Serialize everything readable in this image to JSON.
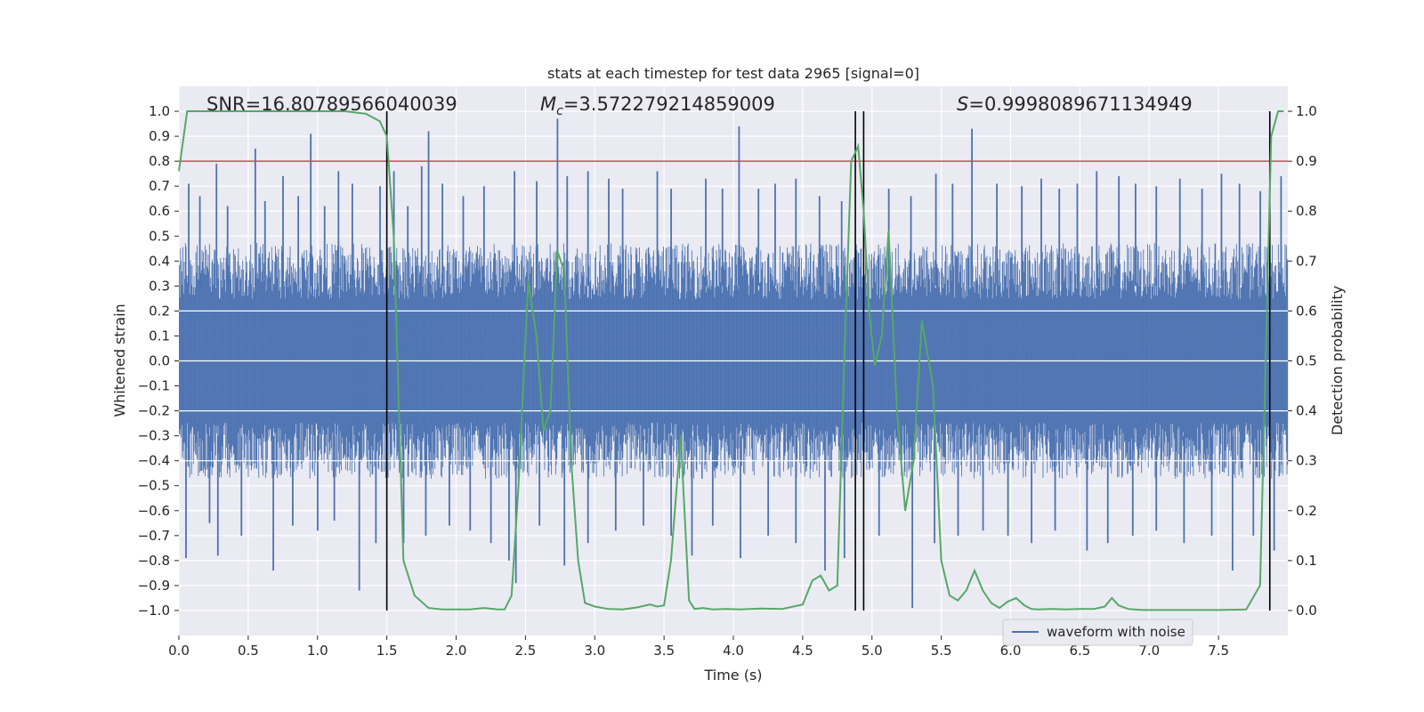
{
  "chart_data": {
    "type": "line",
    "title": "stats at each timestep for test data 2965 [signal=0]",
    "xlabel": "Time (s)",
    "ylabel_left": "Whitened strain",
    "ylabel_right": "Detection probability",
    "xlim": [
      0.0,
      8.0
    ],
    "ylim_left": [
      -1.1,
      1.1
    ],
    "ylim_right": [
      -0.05,
      1.05
    ],
    "x_ticks": [
      0.0,
      0.5,
      1.0,
      1.5,
      2.0,
      2.5,
      3.0,
      3.5,
      4.0,
      4.5,
      5.0,
      5.5,
      6.0,
      6.5,
      7.0,
      7.5
    ],
    "x_tick_labels": [
      "0.0",
      "0.5",
      "1.0",
      "1.5",
      "2.0",
      "2.5",
      "3.0",
      "3.5",
      "4.0",
      "4.5",
      "5.0",
      "5.5",
      "6.0",
      "6.5",
      "7.0",
      "7.5"
    ],
    "y_ticks_left": [
      1.0,
      0.9,
      0.8,
      0.7,
      0.6,
      0.5,
      0.4,
      0.3,
      0.2,
      0.1,
      0.0,
      -0.1,
      -0.2,
      -0.3,
      -0.4,
      -0.5,
      -0.6,
      -0.7,
      -0.8,
      -0.9,
      -1.0
    ],
    "y_tick_labels_left": [
      "1.0",
      "0.9",
      "0.8",
      "0.7",
      "0.6",
      "0.5",
      "0.4",
      "0.3",
      "0.2",
      "0.1",
      "0.0",
      "−0.1",
      "−0.2",
      "−0.3",
      "−0.4",
      "−0.5",
      "−0.6",
      "−0.7",
      "−0.8",
      "−0.9",
      "−1.0"
    ],
    "y_ticks_right": [
      1.0,
      0.9,
      0.8,
      0.7,
      0.6,
      0.5,
      0.4,
      0.3,
      0.2,
      0.1,
      0.0
    ],
    "y_tick_labels_right": [
      "1.0",
      "0.9",
      "0.8",
      "0.7",
      "0.6",
      "0.5",
      "0.4",
      "0.3",
      "0.2",
      "0.1",
      "0.0"
    ],
    "grid": true,
    "annotations": {
      "snr": "SNR=16.80789566040039",
      "mc_symbol": "M",
      "mc_sub": "c",
      "mc_value": "=3.572279214859009",
      "s_symbol": "S",
      "s_value": "=0.9998089671134949"
    },
    "threshold": {
      "value": 0.9,
      "axis": "right",
      "color": "#c44e52"
    },
    "vertical_markers_x": [
      1.5,
      4.88,
      4.94,
      7.87
    ],
    "waveform": {
      "name": "waveform with noise",
      "color": "#4c72b0",
      "duration_s": 8.0,
      "typical_upper": 0.45,
      "typical_lower": -0.45,
      "spikes_up": [
        [
          0.07,
          0.71
        ],
        [
          0.15,
          0.66
        ],
        [
          0.27,
          0.79
        ],
        [
          0.35,
          0.62
        ],
        [
          0.55,
          0.85
        ],
        [
          0.62,
          0.64
        ],
        [
          0.75,
          0.74
        ],
        [
          0.86,
          0.66
        ],
        [
          0.95,
          0.91
        ],
        [
          1.05,
          0.62
        ],
        [
          1.15,
          0.76
        ],
        [
          1.25,
          0.71
        ],
        [
          1.45,
          0.7
        ],
        [
          1.55,
          0.76
        ],
        [
          1.65,
          0.62
        ],
        [
          1.75,
          0.78
        ],
        [
          1.8,
          0.92
        ],
        [
          1.9,
          0.71
        ],
        [
          2.05,
          0.66
        ],
        [
          2.2,
          0.7
        ],
        [
          2.42,
          0.76
        ],
        [
          2.58,
          0.72
        ],
        [
          2.73,
          0.97
        ],
        [
          2.8,
          0.74
        ],
        [
          2.95,
          0.76
        ],
        [
          3.1,
          0.73
        ],
        [
          3.2,
          0.69
        ],
        [
          3.45,
          0.76
        ],
        [
          3.55,
          0.69
        ],
        [
          3.8,
          0.73
        ],
        [
          3.92,
          0.69
        ],
        [
          4.04,
          0.94
        ],
        [
          4.18,
          0.69
        ],
        [
          4.3,
          0.71
        ],
        [
          4.45,
          0.73
        ],
        [
          4.62,
          0.66
        ],
        [
          4.78,
          0.64
        ],
        [
          5.12,
          0.69
        ],
        [
          5.28,
          0.66
        ],
        [
          5.46,
          0.75
        ],
        [
          5.58,
          0.71
        ],
        [
          5.72,
          0.93
        ],
        [
          5.9,
          0.71
        ],
        [
          6.08,
          0.7
        ],
        [
          6.22,
          0.73
        ],
        [
          6.35,
          0.69
        ],
        [
          6.48,
          0.71
        ],
        [
          6.62,
          0.76
        ],
        [
          6.78,
          0.74
        ],
        [
          6.9,
          0.71
        ],
        [
          7.05,
          0.7
        ],
        [
          7.22,
          0.73
        ],
        [
          7.38,
          0.69
        ],
        [
          7.52,
          0.75
        ],
        [
          7.65,
          0.71
        ],
        [
          7.8,
          0.68
        ],
        [
          7.95,
          0.74
        ]
      ],
      "spikes_down": [
        [
          0.05,
          -0.79
        ],
        [
          0.22,
          -0.65
        ],
        [
          0.28,
          -0.78
        ],
        [
          0.45,
          -0.7
        ],
        [
          0.68,
          -0.84
        ],
        [
          0.82,
          -0.66
        ],
        [
          1.0,
          -0.68
        ],
        [
          1.12,
          -0.64
        ],
        [
          1.3,
          -0.92
        ],
        [
          1.42,
          -0.73
        ],
        [
          1.62,
          -0.73
        ],
        [
          1.78,
          -0.7
        ],
        [
          1.95,
          -0.66
        ],
        [
          2.1,
          -0.68
        ],
        [
          2.25,
          -0.73
        ],
        [
          2.38,
          -0.8
        ],
        [
          2.43,
          -0.89
        ],
        [
          2.6,
          -0.66
        ],
        [
          2.78,
          -0.82
        ],
        [
          2.95,
          -0.73
        ],
        [
          3.15,
          -0.68
        ],
        [
          3.35,
          -0.66
        ],
        [
          3.55,
          -0.7
        ],
        [
          3.7,
          -0.78
        ],
        [
          3.85,
          -0.66
        ],
        [
          4.05,
          -0.79
        ],
        [
          4.25,
          -0.7
        ],
        [
          4.45,
          -0.73
        ],
        [
          4.66,
          -0.84
        ],
        [
          4.8,
          -0.79
        ],
        [
          5.05,
          -0.7
        ],
        [
          5.29,
          -0.99
        ],
        [
          5.45,
          -0.73
        ],
        [
          5.62,
          -0.7
        ],
        [
          5.8,
          -0.68
        ],
        [
          5.98,
          -0.7
        ],
        [
          6.15,
          -0.73
        ],
        [
          6.32,
          -0.68
        ],
        [
          6.55,
          -0.76
        ],
        [
          6.7,
          -0.73
        ],
        [
          6.88,
          -0.7
        ],
        [
          7.05,
          -0.68
        ],
        [
          7.25,
          -0.73
        ],
        [
          7.45,
          -0.7
        ],
        [
          7.6,
          -0.84
        ],
        [
          7.75,
          -0.7
        ],
        [
          7.9,
          -0.76
        ]
      ]
    },
    "detection_probability": {
      "color": "#55a868",
      "x": [
        0.0,
        0.06,
        0.2,
        0.4,
        0.6,
        0.8,
        1.0,
        1.2,
        1.35,
        1.45,
        1.5,
        1.55,
        1.62,
        1.7,
        1.8,
        1.9,
        2.0,
        2.1,
        2.2,
        2.3,
        2.35,
        2.4,
        2.45,
        2.52,
        2.58,
        2.63,
        2.68,
        2.73,
        2.78,
        2.83,
        2.88,
        2.93,
        3.0,
        3.1,
        3.2,
        3.3,
        3.4,
        3.45,
        3.5,
        3.55,
        3.62,
        3.68,
        3.72,
        3.78,
        3.85,
        3.95,
        4.05,
        4.2,
        4.35,
        4.5,
        4.57,
        4.63,
        4.69,
        4.75,
        4.8,
        4.85,
        4.9,
        4.94,
        4.98,
        5.02,
        5.07,
        5.12,
        5.18,
        5.24,
        5.3,
        5.36,
        5.44,
        5.5,
        5.56,
        5.62,
        5.68,
        5.74,
        5.8,
        5.86,
        5.92,
        5.98,
        6.04,
        6.1,
        6.15,
        6.2,
        6.3,
        6.4,
        6.5,
        6.6,
        6.68,
        6.73,
        6.78,
        6.85,
        6.95,
        7.1,
        7.3,
        7.5,
        7.7,
        7.8,
        7.84,
        7.88,
        7.93,
        7.97
      ],
      "y": [
        0.88,
        1.0,
        1.0,
        1.0,
        1.0,
        1.0,
        1.0,
        1.0,
        0.995,
        0.98,
        0.95,
        0.75,
        0.1,
        0.03,
        0.005,
        0.002,
        0.002,
        0.002,
        0.005,
        0.002,
        0.002,
        0.03,
        0.25,
        0.66,
        0.55,
        0.36,
        0.4,
        0.72,
        0.68,
        0.3,
        0.1,
        0.015,
        0.008,
        0.003,
        0.002,
        0.006,
        0.012,
        0.008,
        0.01,
        0.1,
        0.35,
        0.02,
        0.003,
        0.005,
        0.002,
        0.003,
        0.002,
        0.004,
        0.003,
        0.012,
        0.06,
        0.07,
        0.04,
        0.05,
        0.5,
        0.9,
        0.93,
        0.8,
        0.6,
        0.49,
        0.55,
        0.76,
        0.4,
        0.2,
        0.3,
        0.58,
        0.45,
        0.1,
        0.03,
        0.02,
        0.04,
        0.08,
        0.04,
        0.015,
        0.005,
        0.018,
        0.025,
        0.01,
        0.003,
        0.002,
        0.003,
        0.002,
        0.003,
        0.003,
        0.008,
        0.025,
        0.01,
        0.003,
        0.001,
        0.001,
        0.001,
        0.001,
        0.002,
        0.05,
        0.5,
        0.95,
        1.0,
        1.0
      ]
    },
    "legend": {
      "position": "bottom-right",
      "entries": [
        "waveform with noise"
      ]
    },
    "colors": {
      "background": "#eaeaf2",
      "grid": "#ffffff",
      "marker": "#000000"
    }
  }
}
